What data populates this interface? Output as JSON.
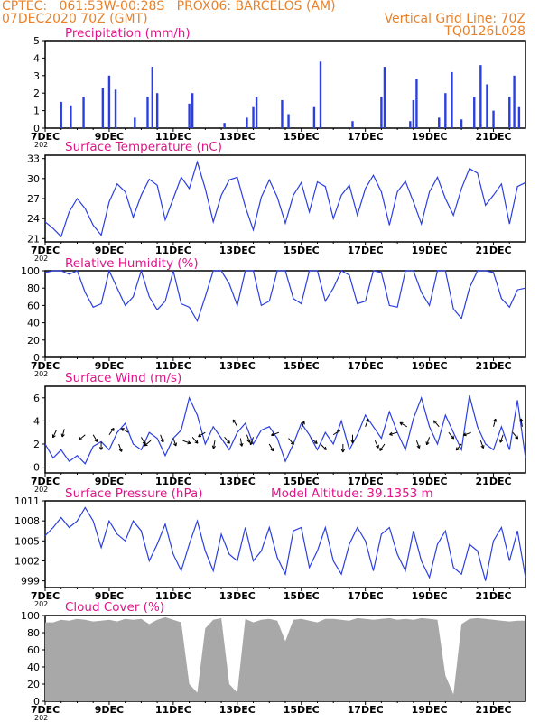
{
  "header": {
    "line1_left": "CPTEC:   061:53W-00:28S   PROX06: BARCELOS (AM)",
    "line2_left": "07DEC2020 70Z (GMT)",
    "line2_right": "Vertical Grid Line: 70Z",
    "line3_right": "TQ0126L028"
  },
  "colors": {
    "header": "#e8822a",
    "title": "#e0158a",
    "series": "#2b3fe0",
    "cloud": "#a8a8a8"
  },
  "x_ticks": {
    "labels": [
      "7DEC",
      "9DEC",
      "11DEC",
      "13DEC",
      "15DEC",
      "17DEC",
      "19DEC",
      "21DEC"
    ],
    "year_fragment": "202"
  },
  "panels": {
    "precip": {
      "title": "Precipitation (mm/h)"
    },
    "temp": {
      "title": "Surface Temperature (nC)"
    },
    "rh": {
      "title": "Relative Humidity (%)"
    },
    "wind": {
      "title": "Surface Wind (m/s)"
    },
    "pressure": {
      "title": "Surface Pressure (hPa)",
      "altitude": "Model Altitude: 39.1353 m"
    },
    "cloud": {
      "title": "Cloud Cover (%)"
    }
  },
  "chart_data": [
    {
      "type": "bar",
      "id": "precip",
      "title": "Precipitation (mm/h)",
      "x_unit": "days since 7DEC 00Z",
      "xlim": [
        0,
        15
      ],
      "ylim": [
        0,
        5
      ],
      "yticks": [
        0,
        1,
        2,
        3,
        4,
        5
      ],
      "peaks": [
        [
          0.5,
          1.5
        ],
        [
          0.8,
          1.3
        ],
        [
          1.2,
          1.8
        ],
        [
          1.8,
          2.3
        ],
        [
          2.0,
          3.0
        ],
        [
          2.2,
          2.2
        ],
        [
          2.8,
          0.6
        ],
        [
          3.2,
          1.8
        ],
        [
          3.35,
          3.5
        ],
        [
          3.5,
          2.0
        ],
        [
          4.5,
          1.4
        ],
        [
          4.6,
          2.0
        ],
        [
          5.6,
          0.3
        ],
        [
          6.3,
          0.6
        ],
        [
          6.5,
          1.2
        ],
        [
          6.6,
          1.8
        ],
        [
          7.4,
          1.6
        ],
        [
          7.6,
          0.8
        ],
        [
          8.4,
          1.2
        ],
        [
          8.6,
          3.8
        ],
        [
          9.6,
          0.4
        ],
        [
          10.5,
          1.8
        ],
        [
          10.6,
          3.5
        ],
        [
          11.4,
          0.4
        ],
        [
          11.5,
          1.6
        ],
        [
          11.6,
          2.8
        ],
        [
          12.3,
          0.6
        ],
        [
          12.5,
          2.0
        ],
        [
          12.7,
          3.2
        ],
        [
          13.0,
          0.5
        ],
        [
          13.4,
          1.8
        ],
        [
          13.6,
          3.6
        ],
        [
          13.8,
          2.5
        ],
        [
          14.0,
          1.0
        ],
        [
          14.5,
          1.8
        ],
        [
          14.65,
          3.0
        ],
        [
          14.8,
          1.2
        ]
      ],
      "note": "dense hourly bars"
    },
    {
      "type": "line",
      "id": "temp",
      "title": "Surface Temperature (nC)",
      "x_unit": "days since 7DEC 00Z",
      "ylim": [
        20.5,
        33.5
      ],
      "yticks": [
        21,
        24,
        27,
        30,
        33
      ],
      "x": [
        0,
        0.25,
        0.5,
        0.75,
        1,
        1.25,
        1.5,
        1.75,
        2,
        2.25,
        2.5,
        2.75,
        3,
        3.25,
        3.5,
        3.75,
        4,
        4.25,
        4.5,
        4.75,
        5,
        5.25,
        5.5,
        5.75,
        6,
        6.25,
        6.5,
        6.75,
        7,
        7.25,
        7.5,
        7.75,
        8,
        8.25,
        8.5,
        8.75,
        9,
        9.25,
        9.5,
        9.75,
        10,
        10.25,
        10.5,
        10.75,
        11,
        11.25,
        11.5,
        11.75,
        12,
        12.25,
        12.5,
        12.75,
        13,
        13.25,
        13.5,
        13.75,
        14,
        14.25,
        14.5,
        14.75,
        15
      ],
      "y": [
        23.5,
        22.5,
        21.3,
        25.0,
        27.0,
        25.5,
        23.0,
        21.5,
        26.5,
        29.2,
        28.0,
        24.2,
        27.5,
        29.9,
        29.0,
        23.8,
        27.0,
        30.2,
        28.5,
        32.5,
        28.5,
        23.5,
        27.5,
        29.8,
        30.2,
        25.8,
        22.3,
        27.2,
        29.8,
        27.2,
        23.3,
        27.5,
        29.4,
        25.0,
        29.5,
        28.8,
        24.0,
        27.5,
        29.0,
        24.5,
        28.5,
        30.5,
        28.0,
        23.0,
        28.0,
        29.6,
        26.5,
        23.2,
        28.0,
        30.2,
        27.0,
        24.5,
        28.5,
        31.5,
        30.8,
        26.0,
        27.5,
        29.2,
        23.2,
        28.8,
        29.4
      ]
    },
    {
      "type": "line",
      "id": "rh",
      "title": "Relative Humidity (%)",
      "x_unit": "days since 7DEC 00Z",
      "ylim": [
        0,
        100
      ],
      "yticks": [
        0,
        20,
        40,
        60,
        80,
        100
      ],
      "x": [
        0,
        0.25,
        0.5,
        0.75,
        1,
        1.25,
        1.5,
        1.75,
        2,
        2.25,
        2.5,
        2.75,
        3,
        3.25,
        3.5,
        3.75,
        4,
        4.25,
        4.5,
        4.75,
        5,
        5.25,
        5.5,
        5.75,
        6,
        6.25,
        6.5,
        6.75,
        7,
        7.25,
        7.5,
        7.75,
        8,
        8.25,
        8.5,
        8.75,
        9,
        9.25,
        9.5,
        9.75,
        10,
        10.25,
        10.5,
        10.75,
        11,
        11.25,
        11.5,
        11.75,
        12,
        12.25,
        12.5,
        12.75,
        13,
        13.25,
        13.5,
        13.75,
        14,
        14.25,
        14.5,
        14.75,
        15
      ],
      "y": [
        98,
        100,
        100,
        96,
        100,
        75,
        58,
        62,
        100,
        80,
        60,
        70,
        100,
        70,
        55,
        65,
        100,
        62,
        58,
        42,
        70,
        100,
        100,
        85,
        60,
        100,
        100,
        60,
        65,
        100,
        100,
        68,
        62,
        100,
        100,
        65,
        80,
        100,
        95,
        62,
        65,
        100,
        98,
        60,
        58,
        100,
        100,
        75,
        60,
        100,
        100,
        56,
        45,
        80,
        100,
        100,
        98,
        68,
        58,
        78,
        80
      ]
    },
    {
      "type": "line",
      "id": "wind",
      "title": "Surface Wind (m/s)",
      "x_unit": "days since 7DEC 00Z",
      "ylim": [
        -0.5,
        7
      ],
      "yticks": [
        0,
        2,
        4,
        6
      ],
      "x": [
        0,
        0.25,
        0.5,
        0.75,
        1,
        1.25,
        1.5,
        1.75,
        2,
        2.25,
        2.5,
        2.75,
        3,
        3.25,
        3.5,
        3.75,
        4,
        4.25,
        4.5,
        4.75,
        5,
        5.25,
        5.5,
        5.75,
        6,
        6.25,
        6.5,
        6.75,
        7,
        7.25,
        7.5,
        7.75,
        8,
        8.25,
        8.5,
        8.75,
        9,
        9.25,
        9.5,
        9.75,
        10,
        10.25,
        10.5,
        10.75,
        11,
        11.25,
        11.5,
        11.75,
        12,
        12.25,
        12.5,
        12.75,
        13,
        13.25,
        13.5,
        13.75,
        14,
        14.25,
        14.5,
        14.75,
        15
      ],
      "y": [
        2.0,
        0.8,
        1.5,
        0.5,
        1.0,
        0.3,
        1.8,
        2.2,
        1.5,
        3.0,
        3.8,
        2.0,
        1.5,
        3.0,
        2.5,
        1.0,
        2.5,
        3.2,
        6.0,
        4.5,
        2.0,
        3.5,
        2.5,
        1.5,
        3.0,
        3.8,
        2.0,
        3.2,
        3.5,
        2.5,
        0.5,
        2.0,
        3.8,
        2.8,
        1.5,
        3.0,
        2.0,
        4.0,
        1.5,
        2.8,
        4.5,
        3.5,
        2.5,
        4.8,
        3.0,
        1.5,
        4.2,
        6.0,
        3.5,
        2.0,
        4.5,
        3.0,
        1.5,
        6.2,
        3.5,
        2.0,
        1.5,
        3.5,
        1.5,
        5.8,
        0.8
      ],
      "barbs": [
        [
          0.35,
          3.2,
          205,
          "W"
        ],
        [
          0.6,
          3.3,
          195,
          "W"
        ],
        [
          1.25,
          2.8,
          230,
          "NE"
        ],
        [
          1.5,
          2.8,
          150,
          "W"
        ],
        [
          1.75,
          2.2,
          180,
          "S"
        ],
        [
          2.0,
          2.8,
          35,
          "SW"
        ],
        [
          2.3,
          2.0,
          160,
          "SW"
        ],
        [
          2.6,
          3.0,
          300,
          "E"
        ],
        [
          3.0,
          2.6,
          150,
          "NW"
        ],
        [
          3.3,
          2.3,
          230,
          "S"
        ],
        [
          3.6,
          2.8,
          160,
          "SW"
        ],
        [
          4.0,
          2.5,
          160,
          "NW"
        ],
        [
          4.3,
          2.3,
          110,
          "SW"
        ],
        [
          4.6,
          2.6,
          140,
          "SW"
        ],
        [
          5.0,
          3.0,
          240,
          "N"
        ],
        [
          5.3,
          2.3,
          190,
          "SW"
        ],
        [
          5.6,
          2.6,
          140,
          "S"
        ],
        [
          6.0,
          3.5,
          330,
          "N"
        ],
        [
          6.1,
          2.5,
          170,
          "S"
        ],
        [
          6.3,
          2.8,
          160,
          "W"
        ],
        [
          6.5,
          2.6,
          200,
          "W"
        ],
        [
          7.0,
          2.0,
          150,
          "SW"
        ],
        [
          7.3,
          3.0,
          250,
          "W"
        ],
        [
          7.6,
          2.5,
          140,
          "SW"
        ],
        [
          8.0,
          3.3,
          20,
          "W"
        ],
        [
          8.3,
          2.5,
          130,
          "SW"
        ],
        [
          8.6,
          2.0,
          135,
          "SW"
        ],
        [
          9.0,
          2.8,
          55,
          "W"
        ],
        [
          9.3,
          2.0,
          180,
          "S"
        ],
        [
          9.6,
          2.8,
          180,
          "S"
        ],
        [
          10.0,
          3.5,
          20,
          "N"
        ],
        [
          10.3,
          2.3,
          155,
          "SE"
        ],
        [
          10.6,
          2.0,
          215,
          "SW"
        ],
        [
          11.0,
          3.0,
          255,
          "N"
        ],
        [
          11.3,
          3.5,
          300,
          "N"
        ],
        [
          11.6,
          2.3,
          160,
          "SE"
        ],
        [
          12.0,
          2.6,
          200,
          "S"
        ],
        [
          12.3,
          3.5,
          320,
          "N"
        ],
        [
          12.6,
          3.0,
          140,
          "SE"
        ],
        [
          13.0,
          2.0,
          220,
          "SW"
        ],
        [
          13.3,
          3.0,
          250,
          "N"
        ],
        [
          13.6,
          2.3,
          160,
          "SE"
        ],
        [
          14.0,
          3.5,
          15,
          "N"
        ],
        [
          14.3,
          2.8,
          200,
          "S"
        ],
        [
          14.6,
          3.0,
          140,
          "SE"
        ],
        [
          14.9,
          3.5,
          350,
          "N"
        ]
      ]
    },
    {
      "type": "line",
      "id": "pressure",
      "title": "Surface Pressure (hPa)",
      "x_unit": "days since 7DEC 00Z",
      "ylim": [
        998,
        1011
      ],
      "yticks": [
        999,
        1002,
        1005,
        1008,
        1011
      ],
      "x": [
        0,
        0.25,
        0.5,
        0.75,
        1,
        1.25,
        1.5,
        1.75,
        2,
        2.25,
        2.5,
        2.75,
        3,
        3.25,
        3.5,
        3.75,
        4,
        4.25,
        4.5,
        4.75,
        5,
        5.25,
        5.5,
        5.75,
        6,
        6.25,
        6.5,
        6.75,
        7,
        7.25,
        7.5,
        7.75,
        8,
        8.25,
        8.5,
        8.75,
        9,
        9.25,
        9.5,
        9.75,
        10,
        10.25,
        10.5,
        10.75,
        11,
        11.25,
        11.5,
        11.75,
        12,
        12.25,
        12.5,
        12.75,
        13,
        13.25,
        13.5,
        13.75,
        14,
        14.25,
        14.5,
        14.75,
        15
      ],
      "y": [
        1005.8,
        1007.0,
        1008.5,
        1007.0,
        1008.0,
        1010.0,
        1008.0,
        1004.0,
        1008.0,
        1006.0,
        1005.0,
        1008.0,
        1006.5,
        1002.0,
        1004.5,
        1007.5,
        1003.0,
        1000.5,
        1004.5,
        1008.0,
        1003.5,
        1000.5,
        1006.0,
        1003.0,
        1002.0,
        1007.0,
        1002.0,
        1003.5,
        1007.0,
        1002.5,
        1000.0,
        1006.5,
        1007.0,
        1001.0,
        1003.5,
        1007.0,
        1002.0,
        1000.0,
        1004.5,
        1007.0,
        1005.0,
        1000.5,
        1006.0,
        1007.0,
        1003.0,
        1000.5,
        1006.5,
        1002.0,
        999.5,
        1004.5,
        1006.5,
        1001.0,
        1000.0,
        1004.5,
        1003.5,
        999.0,
        1005.0,
        1007.0,
        1002.0,
        1006.5,
        999.5
      ]
    },
    {
      "type": "area",
      "id": "cloud",
      "title": "Cloud Cover (%)",
      "x_unit": "days since 7DEC 00Z",
      "ylim": [
        0,
        100
      ],
      "yticks": [
        0,
        20,
        40,
        60,
        80,
        100
      ],
      "x": [
        0,
        0.25,
        0.5,
        0.75,
        1,
        1.25,
        1.5,
        1.75,
        2,
        2.25,
        2.5,
        2.75,
        3,
        3.25,
        3.5,
        3.75,
        4,
        4.25,
        4.5,
        4.75,
        5,
        5.25,
        5.5,
        5.75,
        6,
        6.25,
        6.5,
        6.75,
        7,
        7.25,
        7.5,
        7.75,
        8,
        8.25,
        8.5,
        8.75,
        9,
        9.25,
        9.5,
        9.75,
        10,
        10.25,
        10.5,
        10.75,
        11,
        11.25,
        11.5,
        11.75,
        12,
        12.25,
        12.5,
        12.75,
        13,
        13.25,
        13.5,
        13.75,
        14,
        14.25,
        14.5,
        14.75,
        15
      ],
      "y": [
        92,
        92,
        95,
        94,
        96,
        95,
        93,
        94,
        95,
        93,
        96,
        95,
        96,
        90,
        95,
        98,
        95,
        92,
        20,
        10,
        85,
        95,
        97,
        20,
        10,
        96,
        92,
        95,
        96,
        94,
        70,
        95,
        96,
        94,
        92,
        96,
        96,
        95,
        94,
        97,
        96,
        95,
        96,
        97,
        95,
        96,
        95,
        97,
        96,
        95,
        30,
        8,
        90,
        96,
        97,
        96,
        95,
        94,
        93,
        94,
        94
      ]
    }
  ]
}
